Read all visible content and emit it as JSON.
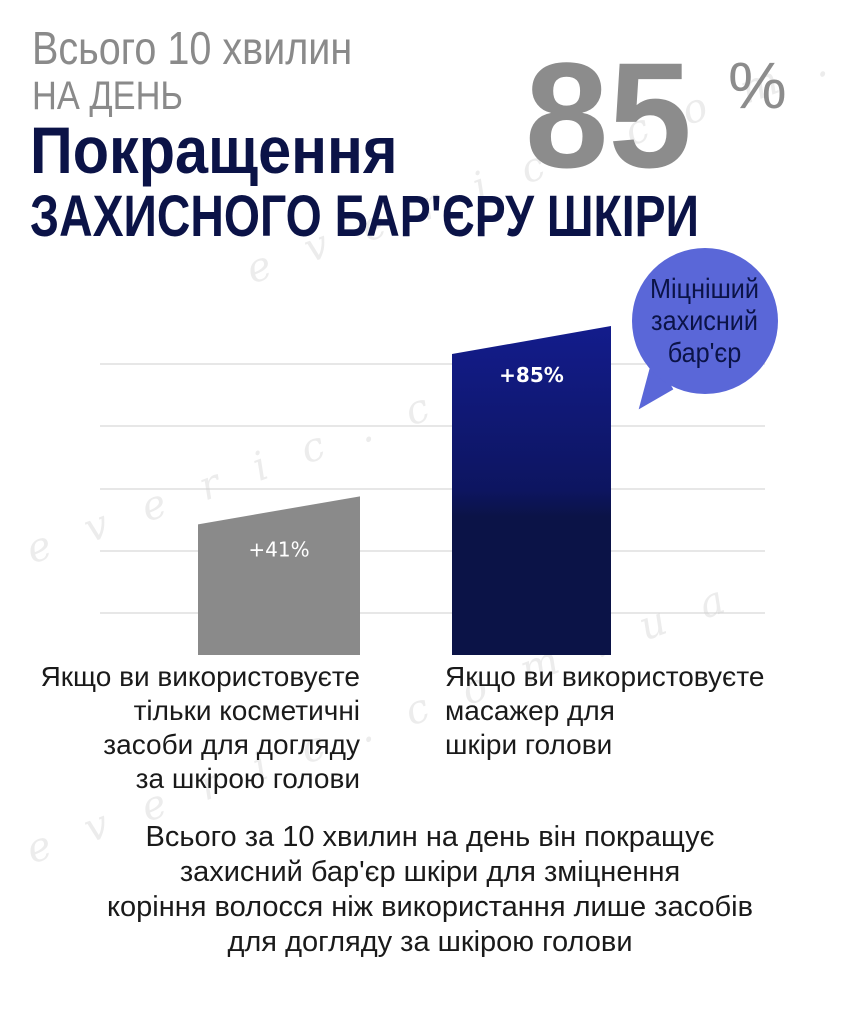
{
  "headline": {
    "line1": "Всього 10 хвилин",
    "line2": "НА ДЕНЬ",
    "line3": "Покращення",
    "line4": "ЗАХИСНОГО БАР'ЄРУ ШКІРИ",
    "big_number": "85",
    "big_percent": "%"
  },
  "bubble": {
    "text": "Міцніший\nзахисний\nбар'єр"
  },
  "colors": {
    "navy": "#0b1347",
    "gray_bar": "#8a8a8a",
    "bubble": "#5a67d8"
  },
  "chart_data": {
    "type": "bar",
    "categories": [
      "Якщо ви використовуєте\nтільки косметичні\nзасоби для догляду\nза шкірою голови",
      "Якщо ви використовуєте\nмасажер для\nшкіри голови"
    ],
    "values": [
      41,
      85
    ],
    "data_labels": [
      "+41%",
      "+85%"
    ],
    "ylim": [
      0,
      100
    ],
    "grid": true,
    "legend": "none"
  },
  "watermark": {
    "text": "everic.com.ua"
  },
  "footer": {
    "text": "Всього за 10 хвилин на день він покращує\nзахисний бар'єр шкіри для зміцнення\nкоріння волосся ніж використання лише засобів\nдля догляду за шкірою голови"
  }
}
